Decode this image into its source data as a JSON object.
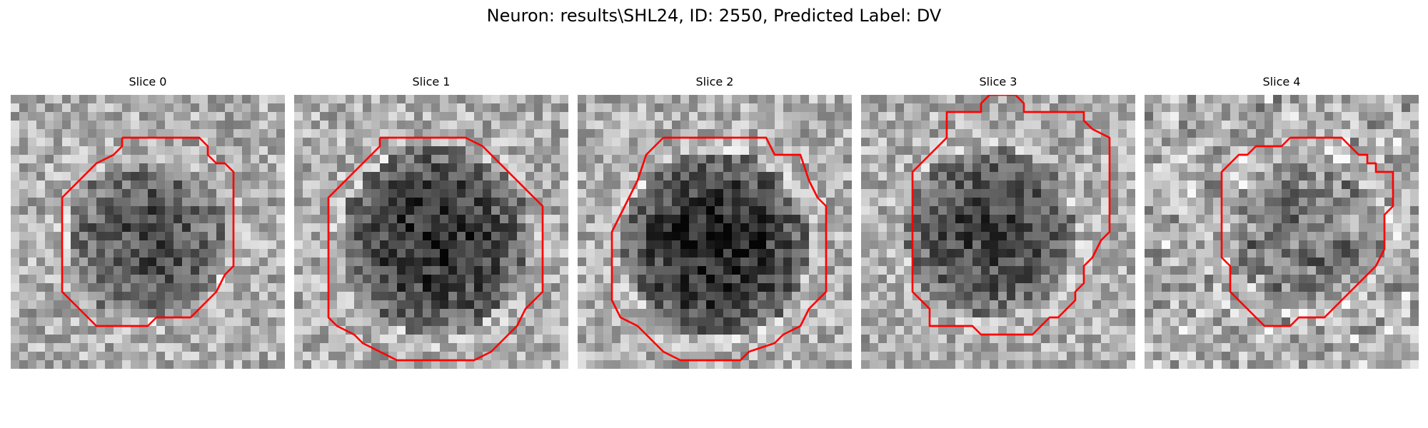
{
  "figure": {
    "title": "Neuron: results\\SHL24, ID: 2550, Predicted Label: DV"
  },
  "panels": [
    {
      "title": "Slice 0"
    },
    {
      "title": "Slice 1"
    },
    {
      "title": "Slice 2"
    },
    {
      "title": "Slice 3"
    },
    {
      "title": "Slice 4"
    }
  ],
  "colors": {
    "contour": "#ff0000",
    "background": "#ffffff"
  }
}
